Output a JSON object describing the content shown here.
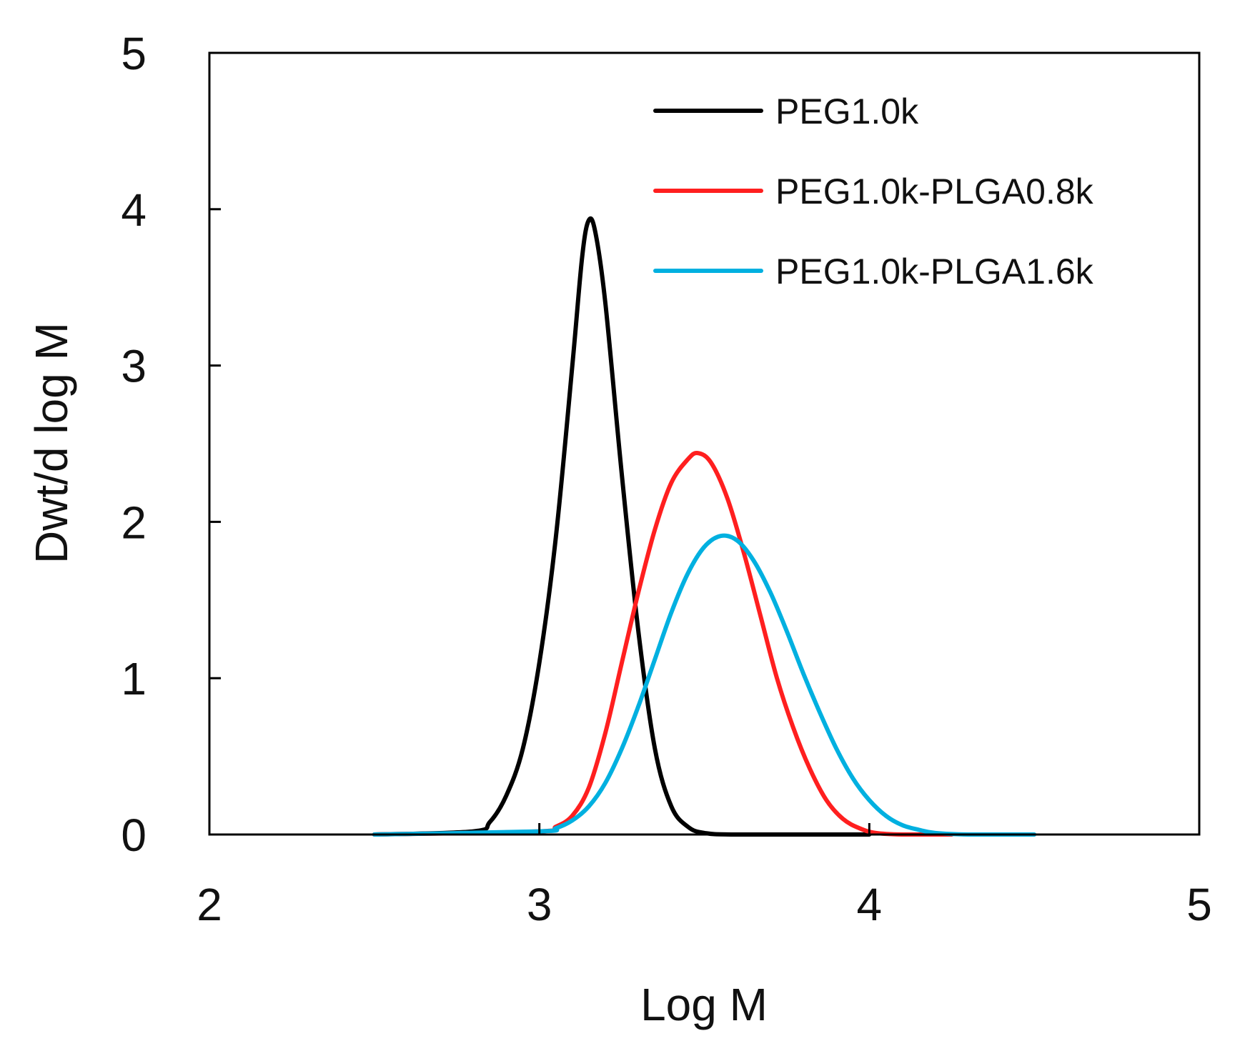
{
  "chart_data": {
    "type": "line",
    "title": "",
    "xlabel": "Log M",
    "ylabel": "Dwt/d log M",
    "xlim": [
      2,
      5
    ],
    "ylim": [
      0,
      5
    ],
    "xticks": [
      "2",
      "3",
      "4",
      "5"
    ],
    "yticks": [
      "0",
      "1",
      "2",
      "3",
      "4",
      "5"
    ],
    "grid": false,
    "legend_position": "top-right",
    "series": [
      {
        "name": "PEG1.0k",
        "color": "#000000",
        "x": [
          2.5,
          2.8,
          2.85,
          2.9,
          2.95,
          3.0,
          3.05,
          3.1,
          3.13,
          3.15,
          3.17,
          3.2,
          3.25,
          3.3,
          3.35,
          3.4,
          3.45,
          3.5,
          3.6,
          4.0
        ],
        "y": [
          0,
          0.02,
          0.08,
          0.25,
          0.55,
          1.1,
          1.9,
          3.0,
          3.7,
          3.93,
          3.85,
          3.4,
          2.3,
          1.3,
          0.55,
          0.18,
          0.05,
          0.01,
          0,
          0
        ]
      },
      {
        "name": "PEG1.0k-PLGA0.8k",
        "color": "#ff1f1f",
        "x": [
          2.5,
          3.0,
          3.05,
          3.1,
          3.15,
          3.2,
          3.25,
          3.3,
          3.35,
          3.4,
          3.45,
          3.48,
          3.52,
          3.57,
          3.62,
          3.67,
          3.72,
          3.77,
          3.82,
          3.87,
          3.92,
          3.97,
          4.02,
          4.1,
          4.25
        ],
        "y": [
          0,
          0.02,
          0.05,
          0.12,
          0.3,
          0.65,
          1.1,
          1.55,
          1.95,
          2.25,
          2.4,
          2.44,
          2.38,
          2.15,
          1.8,
          1.4,
          1.0,
          0.68,
          0.42,
          0.22,
          0.1,
          0.04,
          0.01,
          0,
          0
        ]
      },
      {
        "name": "PEG1.0k-PLGA1.6k",
        "color": "#00b0e0",
        "x": [
          2.5,
          3.0,
          3.05,
          3.1,
          3.15,
          3.2,
          3.25,
          3.3,
          3.35,
          3.4,
          3.45,
          3.5,
          3.55,
          3.6,
          3.65,
          3.7,
          3.75,
          3.8,
          3.85,
          3.9,
          3.95,
          4.0,
          4.05,
          4.1,
          4.15,
          4.2,
          4.3,
          4.5
        ],
        "y": [
          0,
          0.02,
          0.04,
          0.09,
          0.18,
          0.33,
          0.55,
          0.82,
          1.12,
          1.42,
          1.67,
          1.84,
          1.91,
          1.88,
          1.75,
          1.55,
          1.3,
          1.03,
          0.78,
          0.55,
          0.36,
          0.22,
          0.12,
          0.06,
          0.03,
          0.01,
          0,
          0
        ]
      }
    ]
  }
}
